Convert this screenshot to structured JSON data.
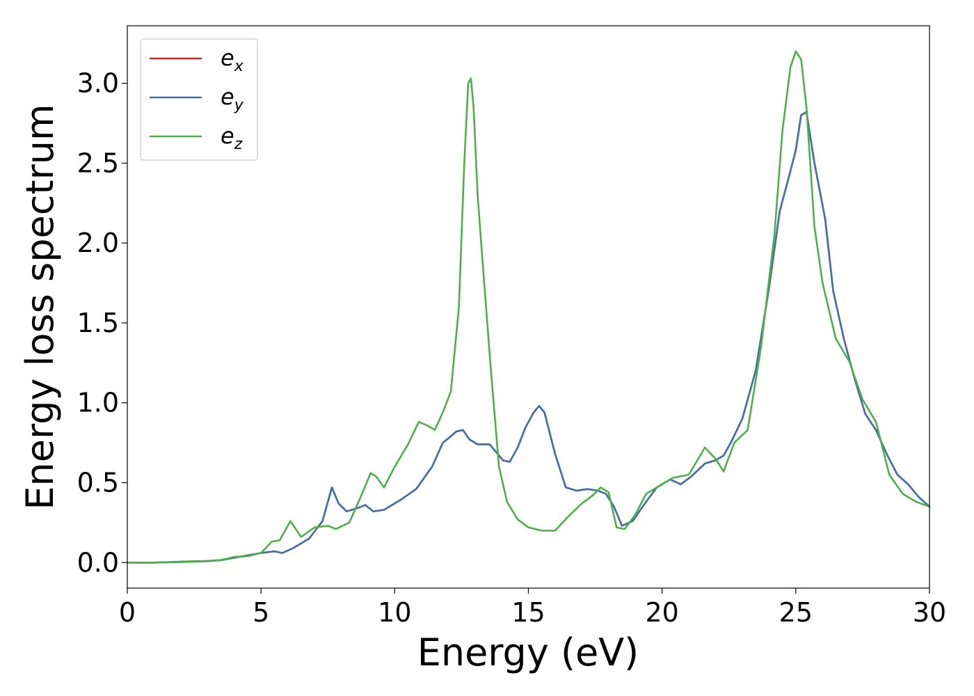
{
  "chart_data": {
    "type": "line",
    "xlabel": "Energy (eV)",
    "ylabel": "Energy loss spectrum",
    "xlim": [
      0,
      30
    ],
    "ylim": [
      -0.16,
      3.36
    ],
    "xticks": [
      0,
      5,
      10,
      15,
      20,
      25,
      30
    ],
    "xtick_labels": [
      "0",
      "5",
      "10",
      "15",
      "20",
      "25",
      "30"
    ],
    "yticks": [
      0.0,
      0.5,
      1.0,
      1.5,
      2.0,
      2.5,
      3.0
    ],
    "ytick_labels": [
      "0.0",
      "0.5",
      "1.0",
      "1.5",
      "2.0",
      "2.5",
      "3.0"
    ],
    "grid": false,
    "legend_position": "top-left",
    "series": [
      {
        "name": "e",
        "subscript": "x",
        "color": "#e41a1c",
        "x": [
          0,
          1,
          2,
          3,
          3.5,
          4,
          4.5,
          5,
          5.5,
          5.8,
          6.2,
          6.8,
          7.3,
          7.65,
          7.9,
          8.2,
          8.6,
          8.9,
          9.2,
          9.6,
          10.2,
          10.8,
          11.4,
          11.8,
          12.1,
          12.3,
          12.55,
          12.8,
          13.1,
          13.3,
          13.55,
          13.8,
          14.05,
          14.3,
          14.6,
          14.9,
          15.2,
          15.4,
          15.6,
          16,
          16.4,
          16.8,
          17.2,
          17.6,
          17.9,
          18.2,
          18.5,
          18.9,
          19.4,
          19.8,
          20.3,
          20.7,
          21.1,
          21.6,
          22,
          22.3,
          22.6,
          23,
          23.5,
          24,
          24.4,
          24.8,
          25,
          25.2,
          25.4,
          25.7,
          26.1,
          26.4,
          26.8,
          27.2,
          27.6,
          28,
          28.4,
          28.8,
          29.2,
          29.6,
          30
        ],
        "y": [
          0,
          0,
          0.005,
          0.01,
          0.015,
          0.03,
          0.045,
          0.06,
          0.07,
          0.06,
          0.09,
          0.15,
          0.26,
          0.47,
          0.37,
          0.32,
          0.34,
          0.36,
          0.32,
          0.33,
          0.39,
          0.46,
          0.6,
          0.75,
          0.79,
          0.82,
          0.83,
          0.77,
          0.74,
          0.74,
          0.74,
          0.69,
          0.64,
          0.63,
          0.72,
          0.85,
          0.94,
          0.98,
          0.94,
          0.68,
          0.47,
          0.45,
          0.46,
          0.45,
          0.43,
          0.35,
          0.23,
          0.26,
          0.38,
          0.47,
          0.52,
          0.49,
          0.54,
          0.62,
          0.64,
          0.67,
          0.76,
          0.9,
          1.2,
          1.72,
          2.2,
          2.45,
          2.58,
          2.8,
          2.82,
          2.5,
          2.15,
          1.7,
          1.4,
          1.15,
          0.93,
          0.83,
          0.68,
          0.55,
          0.49,
          0.41,
          0.35
        ]
      },
      {
        "name": "e",
        "subscript": "y",
        "color": "#3d73a8",
        "x": [
          0,
          1,
          2,
          3,
          3.5,
          4,
          4.5,
          5,
          5.5,
          5.8,
          6.2,
          6.8,
          7.3,
          7.65,
          7.9,
          8.2,
          8.6,
          8.9,
          9.2,
          9.6,
          10.2,
          10.8,
          11.4,
          11.8,
          12.1,
          12.3,
          12.55,
          12.8,
          13.1,
          13.3,
          13.55,
          13.8,
          14.05,
          14.3,
          14.6,
          14.9,
          15.2,
          15.4,
          15.6,
          16,
          16.4,
          16.8,
          17.2,
          17.6,
          17.9,
          18.2,
          18.5,
          18.9,
          19.4,
          19.8,
          20.3,
          20.7,
          21.1,
          21.6,
          22,
          22.3,
          22.6,
          23,
          23.5,
          24,
          24.4,
          24.8,
          25,
          25.2,
          25.4,
          25.7,
          26.1,
          26.4,
          26.8,
          27.2,
          27.6,
          28,
          28.4,
          28.8,
          29.2,
          29.6,
          30
        ],
        "y": [
          0,
          0,
          0.005,
          0.01,
          0.015,
          0.03,
          0.045,
          0.06,
          0.07,
          0.06,
          0.09,
          0.15,
          0.26,
          0.47,
          0.37,
          0.32,
          0.34,
          0.36,
          0.32,
          0.33,
          0.39,
          0.46,
          0.6,
          0.75,
          0.79,
          0.82,
          0.83,
          0.77,
          0.74,
          0.74,
          0.74,
          0.69,
          0.64,
          0.63,
          0.72,
          0.85,
          0.94,
          0.98,
          0.94,
          0.68,
          0.47,
          0.45,
          0.46,
          0.45,
          0.43,
          0.35,
          0.23,
          0.26,
          0.38,
          0.47,
          0.52,
          0.49,
          0.54,
          0.62,
          0.64,
          0.67,
          0.76,
          0.9,
          1.2,
          1.72,
          2.2,
          2.45,
          2.58,
          2.8,
          2.82,
          2.5,
          2.15,
          1.7,
          1.4,
          1.15,
          0.93,
          0.83,
          0.68,
          0.55,
          0.49,
          0.41,
          0.35
        ]
      },
      {
        "name": "e",
        "subscript": "z",
        "color": "#4daf4a",
        "x": [
          0,
          1,
          2,
          3,
          3.5,
          4,
          4.5,
          5,
          5.4,
          5.7,
          6.1,
          6.5,
          7,
          7.5,
          7.8,
          8.3,
          8.7,
          9.1,
          9.3,
          9.6,
          10,
          10.5,
          10.9,
          11.2,
          11.5,
          11.8,
          12.1,
          12.4,
          12.6,
          12.75,
          12.85,
          12.95,
          13.1,
          13.3,
          13.6,
          13.9,
          14.2,
          14.6,
          15,
          15.5,
          16,
          16.5,
          17,
          17.4,
          17.7,
          18,
          18.3,
          18.6,
          19,
          19.4,
          19.9,
          20.4,
          21,
          21.6,
          22,
          22.3,
          22.7,
          23.2,
          23.7,
          24.2,
          24.5,
          24.8,
          25,
          25.2,
          25.4,
          25.7,
          26,
          26.5,
          27,
          27.5,
          28,
          28.5,
          29,
          29.5,
          30
        ],
        "y": [
          0,
          0,
          0.003,
          0.008,
          0.015,
          0.035,
          0.04,
          0.06,
          0.13,
          0.14,
          0.26,
          0.16,
          0.22,
          0.23,
          0.21,
          0.25,
          0.4,
          0.56,
          0.54,
          0.47,
          0.6,
          0.74,
          0.88,
          0.86,
          0.83,
          0.94,
          1.07,
          1.6,
          2.5,
          3.0,
          3.03,
          2.85,
          2.3,
          1.85,
          1.2,
          0.6,
          0.38,
          0.27,
          0.22,
          0.2,
          0.2,
          0.29,
          0.37,
          0.42,
          0.47,
          0.44,
          0.22,
          0.21,
          0.3,
          0.43,
          0.48,
          0.53,
          0.55,
          0.72,
          0.65,
          0.57,
          0.75,
          0.83,
          1.35,
          2.05,
          2.7,
          3.1,
          3.2,
          3.15,
          2.85,
          2.1,
          1.75,
          1.4,
          1.26,
          1.02,
          0.88,
          0.55,
          0.43,
          0.38,
          0.35
        ]
      }
    ]
  }
}
